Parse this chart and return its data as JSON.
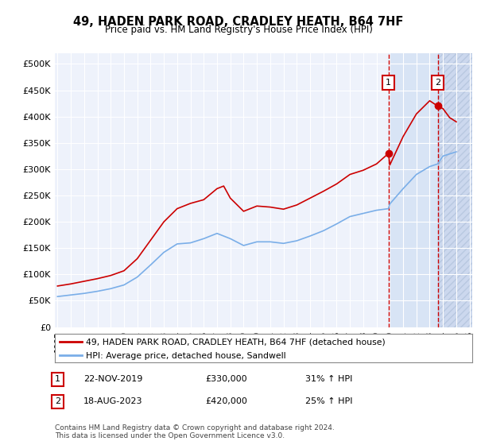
{
  "title": "49, HADEN PARK ROAD, CRADLEY HEATH, B64 7HF",
  "subtitle": "Price paid vs. HM Land Registry's House Price Index (HPI)",
  "red_label": "49, HADEN PARK ROAD, CRADLEY HEATH, B64 7HF (detached house)",
  "blue_label": "HPI: Average price, detached house, Sandwell",
  "ann1_num": "1",
  "ann1_date": "22-NOV-2019",
  "ann1_price": "£330,000",
  "ann1_pct": "31% ↑ HPI",
  "ann1_x": 2019.9,
  "ann1_y": 330000,
  "ann2_num": "2",
  "ann2_date": "18-AUG-2023",
  "ann2_price": "£420,000",
  "ann2_pct": "25% ↑ HPI",
  "ann2_x": 2023.6,
  "ann2_y": 420000,
  "footer": "Contains HM Land Registry data © Crown copyright and database right 2024.\nThis data is licensed under the Open Government Licence v3.0.",
  "ylim": [
    0,
    520000
  ],
  "yticks": [
    0,
    50000,
    100000,
    150000,
    200000,
    250000,
    300000,
    350000,
    400000,
    450000,
    500000
  ],
  "xlim": [
    1994.8,
    2026.2
  ],
  "red_color": "#cc0000",
  "blue_color": "#7aaee8",
  "bg_color": "#eef2fb",
  "shade_color": "#d8e4f5",
  "hatch_color": "#ccd8ee",
  "grid_color": "#ffffff",
  "years_hpi": [
    1995,
    1996,
    1997,
    1998,
    1999,
    2000,
    2001,
    2002,
    2003,
    2004,
    2005,
    2006,
    2007,
    2008,
    2009,
    2010,
    2011,
    2012,
    2013,
    2014,
    2015,
    2016,
    2017,
    2018,
    2019,
    2019.9,
    2020,
    2021,
    2022,
    2023,
    2023.6,
    2024,
    2025
  ],
  "vals_hpi": [
    58000,
    61000,
    64000,
    68000,
    73000,
    80000,
    95000,
    118000,
    142000,
    158000,
    160000,
    168000,
    178000,
    168000,
    155000,
    162000,
    162000,
    159000,
    164000,
    173000,
    183000,
    196000,
    210000,
    216000,
    222000,
    225000,
    234000,
    263000,
    290000,
    305000,
    310000,
    325000,
    333000
  ],
  "years_red": [
    1995,
    1996,
    1997,
    1998,
    1999,
    2000,
    2001,
    2002,
    2003,
    2004,
    2005,
    2006,
    2007,
    2007.5,
    2008,
    2009,
    2010,
    2011,
    2012,
    2013,
    2014,
    2015,
    2016,
    2017,
    2018,
    2019,
    2019.9,
    2020,
    2021,
    2022,
    2023,
    2023.6,
    2024,
    2024.5,
    2025
  ],
  "vals_red": [
    78000,
    82000,
    87000,
    92000,
    98000,
    107000,
    130000,
    165000,
    200000,
    225000,
    235000,
    242000,
    263000,
    268000,
    245000,
    220000,
    230000,
    228000,
    224000,
    232000,
    245000,
    258000,
    272000,
    290000,
    298000,
    310000,
    330000,
    308000,
    362000,
    405000,
    430000,
    420000,
    415000,
    398000,
    390000
  ]
}
